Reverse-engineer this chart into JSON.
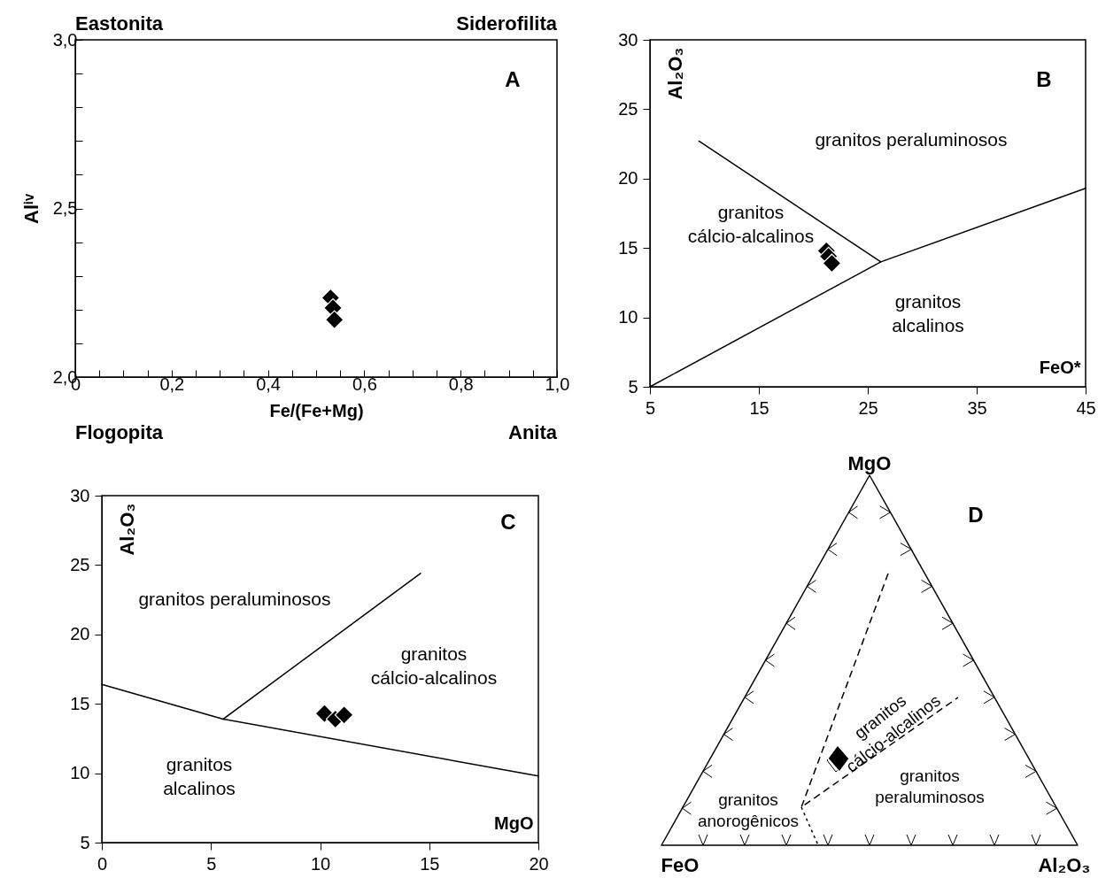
{
  "chart_data": [
    {
      "type": "scatter",
      "xlabel": "Fe/(Fe+Mg)",
      "ylabel": "Alⁱᵛ",
      "annotations": [
        "A",
        "Eastonita",
        "Siderofilita",
        "Flogopita",
        "Anita"
      ],
      "xlim": [
        0,
        1
      ],
      "ylim": [
        2,
        3
      ],
      "xticks": [
        {
          "value": 0,
          "label": "0"
        },
        {
          "value": 0.05,
          "label": null
        },
        {
          "value": 0.1,
          "label": null
        },
        {
          "value": 0.15,
          "label": null
        },
        {
          "value": 0.2,
          "label": "0,2"
        },
        {
          "value": 0.25,
          "label": null
        },
        {
          "value": 0.3,
          "label": null
        },
        {
          "value": 0.35,
          "label": null
        },
        {
          "value": 0.4,
          "label": "0,4"
        },
        {
          "value": 0.45,
          "label": null
        },
        {
          "value": 0.5,
          "label": null
        },
        {
          "value": 0.55,
          "label": null
        },
        {
          "value": 0.6,
          "label": "0,6"
        },
        {
          "value": 0.65,
          "label": null
        },
        {
          "value": 0.7,
          "label": null
        },
        {
          "value": 0.75,
          "label": null
        },
        {
          "value": 0.8,
          "label": "0,8"
        },
        {
          "value": 0.85,
          "label": null
        },
        {
          "value": 0.9,
          "label": null
        },
        {
          "value": 0.95,
          "label": null
        },
        {
          "value": 1,
          "label": "1,0"
        }
      ],
      "yticks": [
        {
          "value": 2,
          "label": "2,0"
        },
        {
          "value": 2.1,
          "label": null
        },
        {
          "value": 2.2,
          "label": null
        },
        {
          "value": 2.3,
          "label": null
        },
        {
          "value": 2.4,
          "label": null
        },
        {
          "value": 2.5,
          "label": "2,5"
        },
        {
          "value": 2.6,
          "label": null
        },
        {
          "value": 2.7,
          "label": null
        },
        {
          "value": 2.8,
          "label": null
        },
        {
          "value": 2.9,
          "label": null
        },
        {
          "value": 3,
          "label": "3,0"
        }
      ],
      "grid": false,
      "series": [
        {
          "color": "#000000",
          "marker": "diamond",
          "x": [
            0.53,
            0.535,
            0.538
          ],
          "values": [
            2.235,
            2.205,
            2.17
          ]
        }
      ]
    },
    {
      "type": "scatter",
      "xlabel": "FeO*",
      "ylabel": "Al₂O₃",
      "annotations": [
        "B",
        "granitos peraluminosos",
        "granitos cálcio-alcalinos",
        "granitos alcalinos"
      ],
      "xlim": [
        5,
        45
      ],
      "ylim": [
        5,
        30
      ],
      "xticks": [
        5,
        15,
        25,
        35,
        45
      ],
      "yticks": [
        5,
        10,
        15,
        20,
        25,
        30
      ],
      "grid": false,
      "series": [
        {
          "color": "#000000",
          "marker": "diamond",
          "x": [
            21.2,
            21.4,
            21.7
          ],
          "values": [
            14.8,
            14.4,
            13.9
          ]
        },
        {
          "type": "line",
          "color": "#000000",
          "x": [
            9.5,
            26.2
          ],
          "values": [
            22.7,
            14
          ]
        },
        {
          "type": "line",
          "color": "#000000",
          "x": [
            5,
            26.2,
            45
          ],
          "values": [
            5,
            14,
            19.3
          ]
        }
      ]
    },
    {
      "type": "scatter",
      "xlabel": "MgO",
      "ylabel": "Al₂O₃",
      "annotations": [
        "C",
        "granitos peraluminosos",
        "granitos cálcio-alcalinos",
        "granitos alcalinos"
      ],
      "xlim": [
        0,
        20
      ],
      "ylim": [
        5,
        30
      ],
      "xticks": [
        0,
        5,
        10,
        15,
        20
      ],
      "yticks": [
        5,
        10,
        15,
        20,
        25,
        30
      ],
      "grid": false,
      "series": [
        {
          "color": "#000000",
          "marker": "diamond",
          "x": [
            10.2,
            10.7,
            11.1
          ],
          "values": [
            14.3,
            13.9,
            14.2
          ]
        },
        {
          "type": "line",
          "color": "#000000",
          "x": [
            0,
            5.56,
            20
          ],
          "values": [
            16.4,
            13.9,
            9.8
          ]
        },
        {
          "type": "line",
          "color": "#000000",
          "x": [
            5.56,
            14.6
          ],
          "values": [
            13.9,
            24.4
          ]
        }
      ]
    },
    {
      "type": "other",
      "annotations": [
        "D",
        "MgO",
        "FeO",
        "Al₂O₃",
        "granitos cálcio-alcalinos",
        "granitos peraluminosos",
        "granitos anorogênicos"
      ]
    }
  ]
}
